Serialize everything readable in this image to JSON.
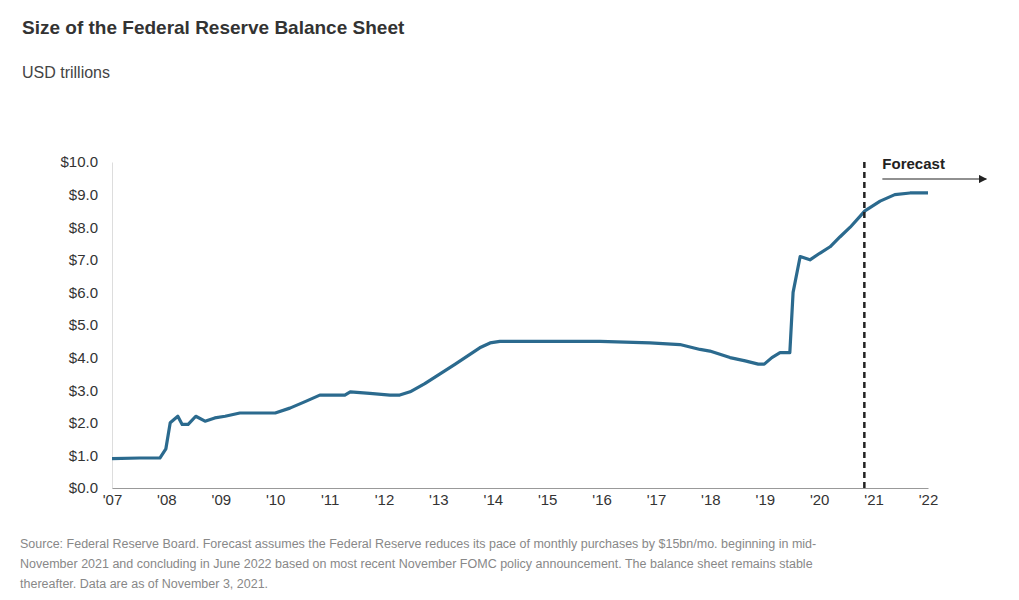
{
  "chart_data": {
    "type": "line",
    "title": "Size of the Federal Reserve Balance Sheet",
    "subtitle": "USD trillions",
    "x": [
      2007.0,
      2007.51,
      2007.88,
      2007.99,
      2008.07,
      2008.21,
      2008.29,
      2008.4,
      2008.54,
      2008.71,
      2008.89,
      2009.08,
      2009.35,
      2009.81,
      2010.0,
      2010.27,
      2010.55,
      2010.82,
      2011.28,
      2011.38,
      2011.74,
      2012.11,
      2012.29,
      2012.48,
      2012.75,
      2013.03,
      2013.31,
      2013.58,
      2013.76,
      2013.95,
      2014.13,
      2015.05,
      2015.97,
      2016.89,
      2017.44,
      2017.81,
      2017.99,
      2018.36,
      2018.64,
      2018.88,
      2018.99,
      2019.13,
      2019.28,
      2019.46,
      2019.52,
      2019.65,
      2019.83,
      2020.01,
      2020.2,
      2020.38,
      2020.57,
      2020.84,
      2021.12,
      2021.39,
      2021.67,
      2022.0
    ],
    "values": [
      0.9,
      0.92,
      0.92,
      1.2,
      2.0,
      2.2,
      1.95,
      1.95,
      2.2,
      2.05,
      2.15,
      2.2,
      2.3,
      2.3,
      2.3,
      2.45,
      2.65,
      2.85,
      2.85,
      2.95,
      2.9,
      2.85,
      2.85,
      2.95,
      3.2,
      3.5,
      3.8,
      4.1,
      4.3,
      4.45,
      4.5,
      4.5,
      4.5,
      4.45,
      4.4,
      4.25,
      4.2,
      4.0,
      3.9,
      3.8,
      3.8,
      4.0,
      4.15,
      4.15,
      6.0,
      7.1,
      7.0,
      7.2,
      7.4,
      7.7,
      8.0,
      8.5,
      8.8,
      9.0,
      9.05,
      9.05
    ],
    "color": "#2b6a8e",
    "xlim": [
      2007,
      2022
    ],
    "xticks": [
      {
        "value": 2007,
        "label": "'07"
      },
      {
        "value": 2008,
        "label": "'08"
      },
      {
        "value": 2009,
        "label": "'09"
      },
      {
        "value": 2010,
        "label": "'10"
      },
      {
        "value": 2011,
        "label": "'11"
      },
      {
        "value": 2012,
        "label": "'12"
      },
      {
        "value": 2013,
        "label": "'13"
      },
      {
        "value": 2014,
        "label": "'14"
      },
      {
        "value": 2015,
        "label": "'15"
      },
      {
        "value": 2016,
        "label": "'16"
      },
      {
        "value": 2017,
        "label": "'17"
      },
      {
        "value": 2018,
        "label": "'18"
      },
      {
        "value": 2019,
        "label": "'19"
      },
      {
        "value": 2020,
        "label": "'20"
      },
      {
        "value": 2021,
        "label": "'21"
      },
      {
        "value": 2022,
        "label": "'22"
      }
    ],
    "ylim": [
      0,
      10
    ],
    "yticks": [
      {
        "value": 0,
        "label": "$0.0"
      },
      {
        "value": 1,
        "label": "$1.0"
      },
      {
        "value": 2,
        "label": "$2.0"
      },
      {
        "value": 3,
        "label": "$3.0"
      },
      {
        "value": 4,
        "label": "$4.0"
      },
      {
        "value": 5,
        "label": "$5.0"
      },
      {
        "value": 6,
        "label": "$6.0"
      },
      {
        "value": 7,
        "label": "$7.0"
      },
      {
        "value": 8,
        "label": "$8.0"
      },
      {
        "value": 9,
        "label": "$9.0"
      },
      {
        "value": 10,
        "label": "$10.0"
      }
    ],
    "grid": false,
    "annotations": [
      {
        "text": "Forecast",
        "x": 2020.83
      }
    ],
    "footnote": [
      "Source: Federal Reserve Board. Forecast assumes the Federal Reserve reduces its pace of monthly purchases by $15bn/mo. beginning in mid-",
      "November 2021 and concluding in June 2022 based on most recent November FOMC policy announcement. The balance sheet remains stable",
      "thereafter. Data are as of November 3, 2021."
    ]
  }
}
